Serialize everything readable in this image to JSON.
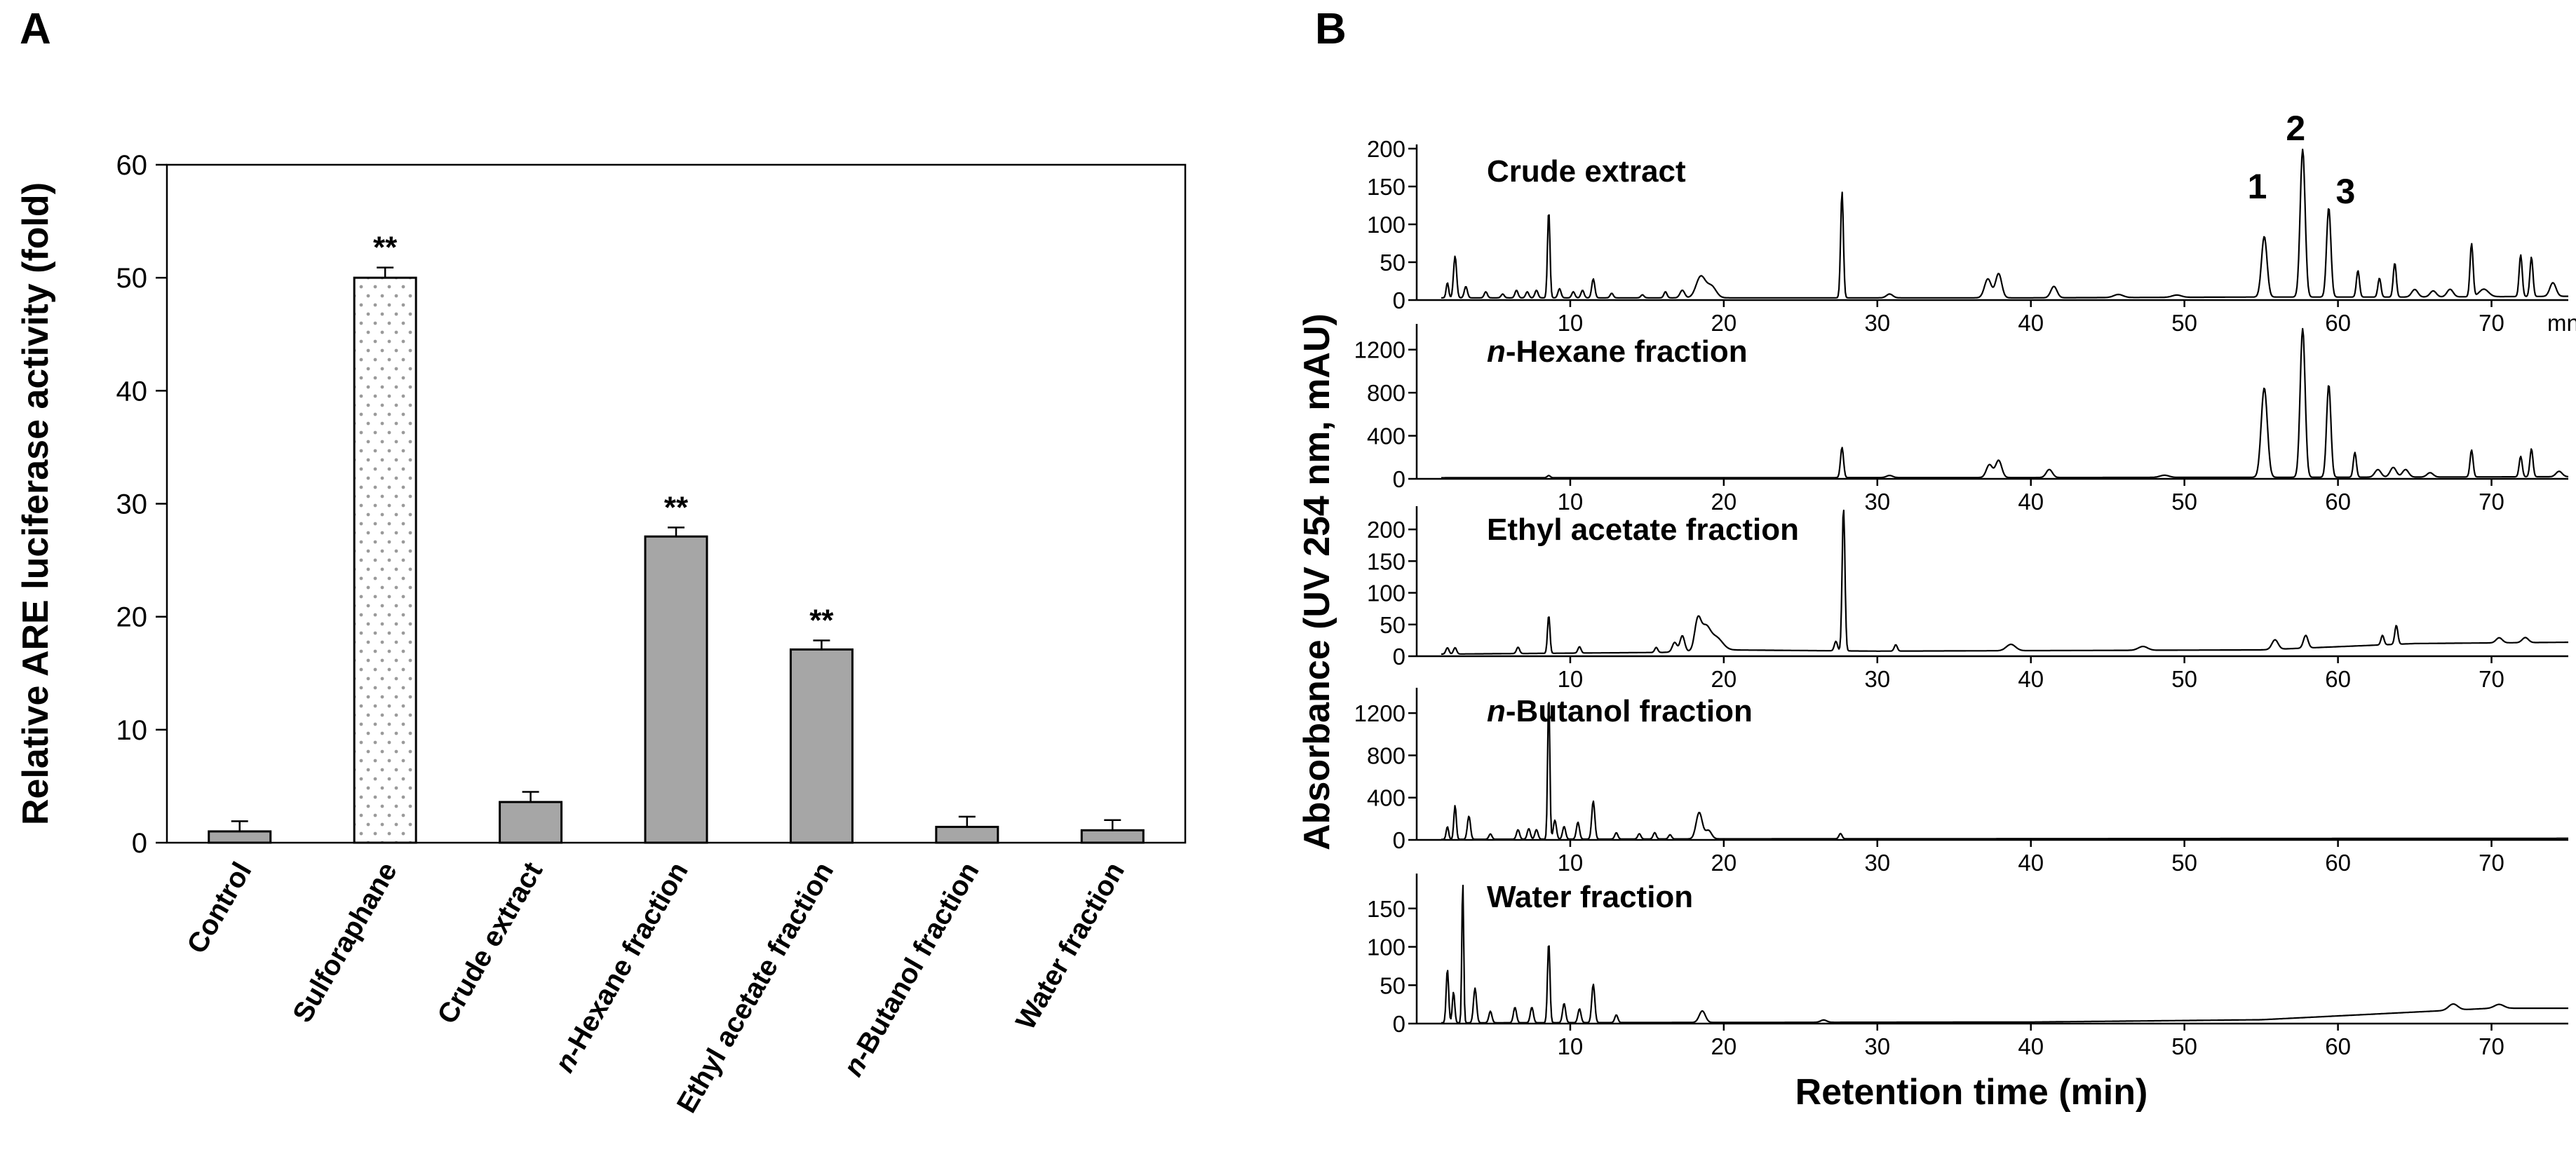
{
  "figure": {
    "panel_a_letter": "A",
    "panel_b_letter": "B"
  },
  "chart_data": [
    {
      "id": "panel-A",
      "type": "bar",
      "ylabel": "Relative ARE luciferase activity (fold)",
      "xlabel": "",
      "ylim": [
        0,
        60
      ],
      "yticks": [
        0,
        10,
        20,
        30,
        40,
        50,
        60
      ],
      "categories": [
        {
          "pre": "",
          "ital": "",
          "post": "Control"
        },
        {
          "pre": "",
          "ital": "",
          "post": "Sulforaphane"
        },
        {
          "pre": "",
          "ital": "",
          "post": "Crude extract"
        },
        {
          "pre": "",
          "ital": "n",
          "post": "-Hexane fraction"
        },
        {
          "pre": "",
          "ital": "",
          "post": "Ethyl acetate fraction"
        },
        {
          "pre": "",
          "ital": "n",
          "post": "-Butanol fraction"
        },
        {
          "pre": "",
          "ital": "",
          "post": "Water fraction"
        }
      ],
      "values": [
        1.0,
        50.0,
        3.6,
        27.1,
        17.1,
        1.4,
        1.1
      ],
      "errors": [
        0.9,
        0.9,
        0.9,
        0.8,
        0.8,
        0.9,
        0.9
      ],
      "significance": [
        "",
        "**",
        "",
        "**",
        "**",
        "",
        ""
      ],
      "bar_styles": [
        "gray",
        "dotted",
        "gray",
        "gray",
        "gray",
        "gray",
        "gray"
      ],
      "colors": {
        "bar_fill": "#a6a6a6",
        "dotted_fill": "#ffffff",
        "dot_color": "#9a9a9a"
      }
    },
    {
      "id": "panel-B",
      "type": "line",
      "ylabel": "Absorbance (UV 254 nm, mAU)",
      "xlabel": "Retention time (min)",
      "xlim": [
        0,
        75
      ],
      "xticks": [
        10,
        20,
        30,
        40,
        50,
        60,
        70
      ],
      "x_unit_label": "mn",
      "peak_labels": [
        {
          "text": "1",
          "x": 55.2
        },
        {
          "text": "2",
          "x": 57.7
        },
        {
          "text": "3",
          "x": 59.4
        }
      ],
      "traces": [
        {
          "name": {
            "ital": "",
            "post": "Crude extract"
          },
          "ylim": [
            0,
            200
          ],
          "yticks": [
            0,
            50,
            100,
            150,
            200
          ],
          "baseline": [
            [
              0,
              3
            ],
            [
              40,
              3
            ],
            [
              55,
              4
            ],
            [
              65,
              4
            ],
            [
              75,
              5
            ]
          ],
          "peaks": [
            [
              2.0,
              20,
              0.08
            ],
            [
              2.5,
              55,
              0.1
            ],
            [
              3.2,
              15,
              0.1
            ],
            [
              4.5,
              8,
              0.1
            ],
            [
              5.6,
              5,
              0.1
            ],
            [
              6.5,
              10,
              0.1
            ],
            [
              7.2,
              8,
              0.1
            ],
            [
              7.8,
              10,
              0.1
            ],
            [
              8.6,
              115,
              0.08
            ],
            [
              9.3,
              12,
              0.1
            ],
            [
              10.2,
              8,
              0.1
            ],
            [
              10.8,
              10,
              0.1
            ],
            [
              11.5,
              25,
              0.1
            ],
            [
              12.7,
              6,
              0.1
            ],
            [
              14.7,
              4,
              0.1
            ],
            [
              16.2,
              8,
              0.1
            ],
            [
              17.3,
              10,
              0.15
            ],
            [
              18.5,
              28,
              0.3
            ],
            [
              19.2,
              15,
              0.3
            ],
            [
              27.7,
              140,
              0.09
            ],
            [
              30.8,
              5,
              0.2
            ],
            [
              37.2,
              25,
              0.22
            ],
            [
              37.9,
              32,
              0.2
            ],
            [
              41.5,
              15,
              0.2
            ],
            [
              45.7,
              4,
              0.3
            ],
            [
              49.5,
              3,
              0.3
            ],
            [
              55.2,
              80,
              0.18
            ],
            [
              57.7,
              195,
              0.16
            ],
            [
              59.4,
              118,
              0.14
            ],
            [
              61.3,
              35,
              0.1
            ],
            [
              62.7,
              25,
              0.1
            ],
            [
              63.7,
              45,
              0.1
            ],
            [
              65.0,
              10,
              0.2
            ],
            [
              66.2,
              8,
              0.2
            ],
            [
              67.3,
              10,
              0.2
            ],
            [
              68.7,
              70,
              0.1
            ],
            [
              69.5,
              10,
              0.3
            ],
            [
              71.9,
              55,
              0.1
            ],
            [
              72.6,
              52,
              0.1
            ],
            [
              74.0,
              18,
              0.2
            ]
          ]
        },
        {
          "name": {
            "ital": "n",
            "post": "-Hexane fraction"
          },
          "ylim": [
            0,
            1400
          ],
          "yticks": [
            0,
            400,
            800,
            1200
          ],
          "baseline": [
            [
              0,
              10
            ],
            [
              40,
              12
            ],
            [
              60,
              15
            ],
            [
              75,
              20
            ]
          ],
          "peaks": [
            [
              8.6,
              20,
              0.1
            ],
            [
              27.7,
              280,
              0.1
            ],
            [
              30.8,
              20,
              0.2
            ],
            [
              37.3,
              120,
              0.2
            ],
            [
              37.9,
              160,
              0.2
            ],
            [
              41.2,
              75,
              0.2
            ],
            [
              48.7,
              20,
              0.3
            ],
            [
              55.2,
              830,
              0.2
            ],
            [
              57.7,
              1380,
              0.16
            ],
            [
              59.4,
              860,
              0.14
            ],
            [
              61.1,
              230,
              0.1
            ],
            [
              62.6,
              70,
              0.2
            ],
            [
              63.6,
              90,
              0.2
            ],
            [
              64.4,
              70,
              0.2
            ],
            [
              66.0,
              40,
              0.2
            ],
            [
              68.7,
              250,
              0.1
            ],
            [
              71.9,
              190,
              0.1
            ],
            [
              72.6,
              260,
              0.1
            ],
            [
              74.4,
              50,
              0.2
            ]
          ]
        },
        {
          "name": {
            "ital": "",
            "post": "Ethyl acetate fraction"
          },
          "ylim": [
            0,
            230
          ],
          "yticks": [
            0,
            50,
            100,
            150,
            200
          ],
          "baseline": [
            [
              0,
              3
            ],
            [
              16,
              6
            ],
            [
              20,
              10
            ],
            [
              30,
              8
            ],
            [
              55,
              10
            ],
            [
              60,
              15
            ],
            [
              65,
              20
            ],
            [
              75,
              22
            ]
          ],
          "peaks": [
            [
              2.0,
              10,
              0.1
            ],
            [
              2.5,
              10,
              0.1
            ],
            [
              6.6,
              10,
              0.1
            ],
            [
              8.6,
              60,
              0.08
            ],
            [
              10.6,
              10,
              0.1
            ],
            [
              15.6,
              8,
              0.1
            ],
            [
              16.8,
              15,
              0.15
            ],
            [
              17.3,
              25,
              0.15
            ],
            [
              18.3,
              45,
              0.2
            ],
            [
              18.8,
              35,
              0.3
            ],
            [
              19.5,
              20,
              0.4
            ],
            [
              27.3,
              15,
              0.1
            ],
            [
              27.8,
              230,
              0.09
            ],
            [
              31.2,
              10,
              0.1
            ],
            [
              38.7,
              10,
              0.3
            ],
            [
              47.3,
              6,
              0.3
            ],
            [
              55.9,
              15,
              0.2
            ],
            [
              57.9,
              20,
              0.15
            ],
            [
              62.9,
              15,
              0.1
            ],
            [
              63.8,
              30,
              0.1
            ],
            [
              70.5,
              8,
              0.2
            ],
            [
              72.2,
              8,
              0.2
            ]
          ]
        },
        {
          "name": {
            "ital": "n",
            "post": "-Butanol fraction"
          },
          "ylim": [
            0,
            1400
          ],
          "yticks": [
            0,
            400,
            800,
            1200
          ],
          "baseline": [
            [
              0,
              5
            ],
            [
              20,
              10
            ],
            [
              75,
              15
            ]
          ],
          "peaks": [
            [
              2.0,
              120,
              0.08
            ],
            [
              2.5,
              320,
              0.08
            ],
            [
              3.4,
              220,
              0.1
            ],
            [
              4.8,
              50,
              0.1
            ],
            [
              6.6,
              90,
              0.1
            ],
            [
              7.3,
              100,
              0.1
            ],
            [
              7.8,
              90,
              0.1
            ],
            [
              8.6,
              1380,
              0.07
            ],
            [
              9.0,
              180,
              0.1
            ],
            [
              9.6,
              120,
              0.1
            ],
            [
              10.5,
              160,
              0.1
            ],
            [
              11.5,
              360,
              0.1
            ],
            [
              13.0,
              60,
              0.1
            ],
            [
              14.5,
              50,
              0.1
            ],
            [
              15.5,
              60,
              0.1
            ],
            [
              16.5,
              40,
              0.1
            ],
            [
              18.4,
              250,
              0.2
            ],
            [
              19.0,
              80,
              0.2
            ],
            [
              27.6,
              50,
              0.1
            ]
          ]
        },
        {
          "name": {
            "ital": "",
            "post": "Water fraction"
          },
          "ylim": [
            0,
            190
          ],
          "yticks": [
            0,
            50,
            100,
            150
          ],
          "baseline": [
            [
              0,
              1
            ],
            [
              40,
              2
            ],
            [
              55,
              5
            ],
            [
              65,
              15
            ],
            [
              70,
              20
            ],
            [
              75,
              20
            ]
          ],
          "peaks": [
            [
              2.0,
              70,
              0.08
            ],
            [
              2.4,
              40,
              0.08
            ],
            [
              3.0,
              185,
              0.06
            ],
            [
              3.8,
              45,
              0.1
            ],
            [
              4.8,
              15,
              0.1
            ],
            [
              6.4,
              20,
              0.1
            ],
            [
              7.5,
              20,
              0.1
            ],
            [
              8.6,
              105,
              0.08
            ],
            [
              9.6,
              25,
              0.1
            ],
            [
              10.6,
              18,
              0.1
            ],
            [
              11.5,
              50,
              0.1
            ],
            [
              13.0,
              10,
              0.1
            ],
            [
              18.6,
              15,
              0.2
            ],
            [
              26.5,
              3,
              0.2
            ],
            [
              67.5,
              8,
              0.3
            ],
            [
              70.5,
              5,
              0.3
            ]
          ]
        }
      ]
    }
  ]
}
